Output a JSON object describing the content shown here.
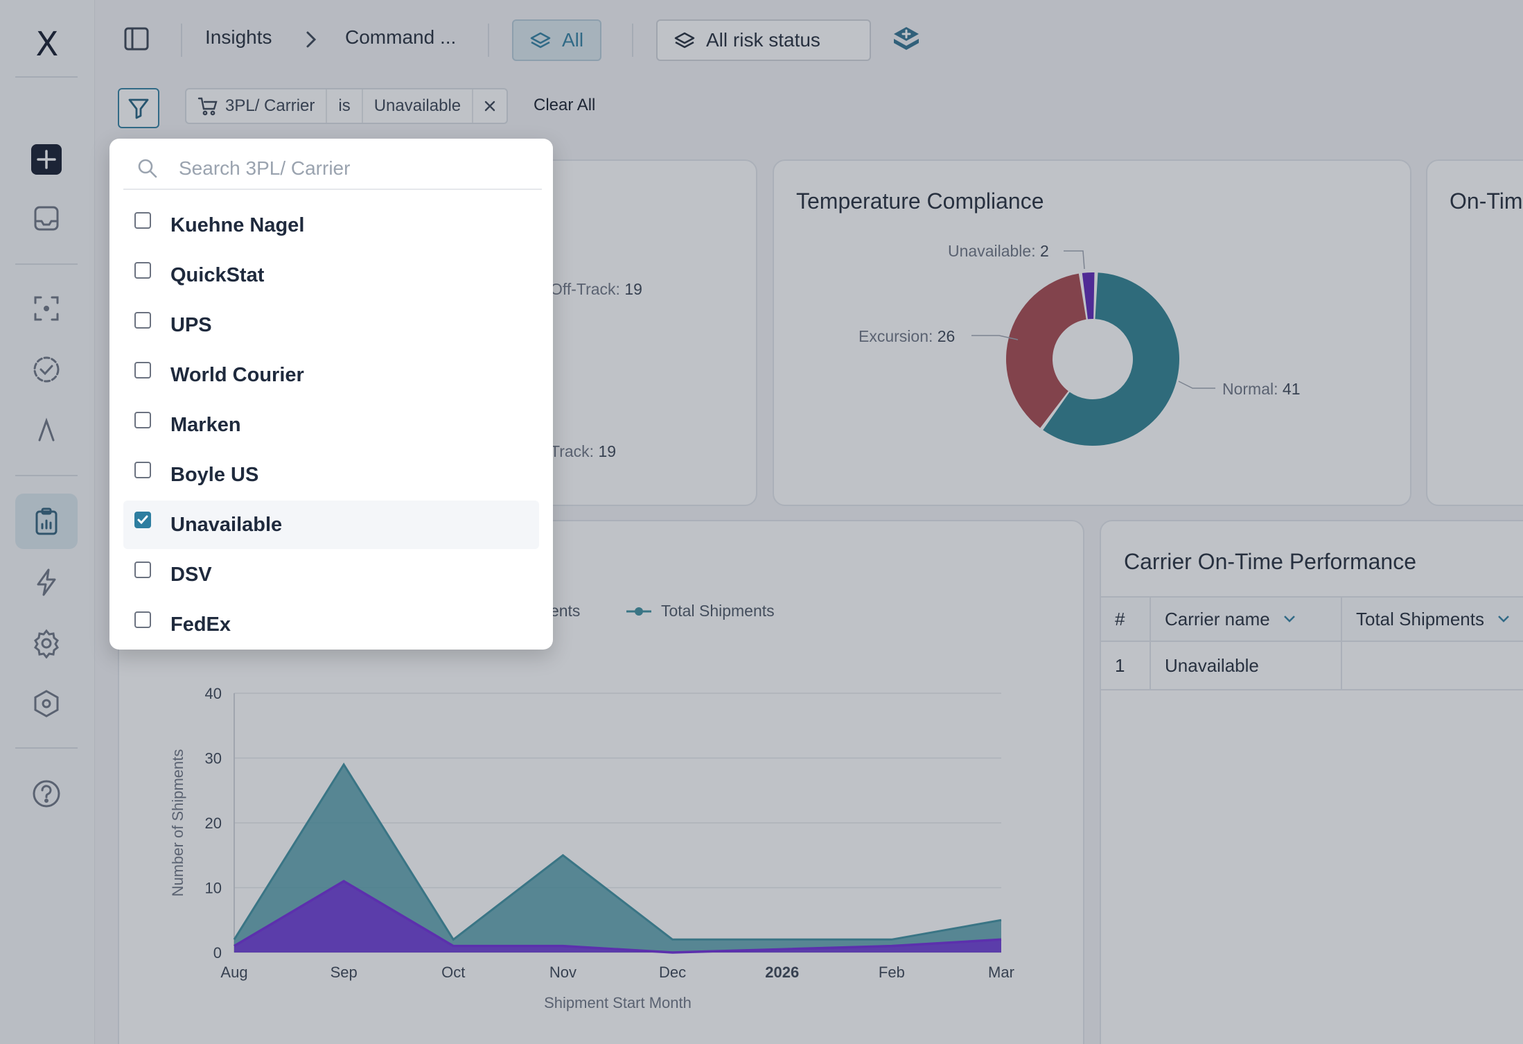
{
  "app": {
    "logo": "X"
  },
  "breadcrumb": {
    "root": "Insights",
    "current": "Command ...",
    "separator": "›"
  },
  "toolbar": {
    "all_label": "All",
    "risk_label": "All risk status"
  },
  "filter": {
    "field": "3PL/ Carrier",
    "operator": "is",
    "value": "Unavailable",
    "clear_all": "Clear All"
  },
  "cards": {
    "tracking": {
      "off_track_top_label": "Off-Track:",
      "off_track_top_value": "19",
      "on_track_label": "Track:",
      "on_track_value": "19"
    },
    "temperature": {
      "title": "Temperature Compliance",
      "labels": [
        {
          "name": "Unavailable:",
          "value": "2"
        },
        {
          "name": "Excursion:",
          "value": "26"
        },
        {
          "name": "Normal:",
          "value": "41"
        }
      ]
    },
    "ontime_partial_title": "On-Tim",
    "trend": {
      "legend_partial": "pments",
      "legend_total": "Total Shipments"
    },
    "carrier_table": {
      "title": "Carrier On-Time Performance",
      "columns": [
        "#",
        "Carrier name",
        "Total Shipments"
      ],
      "rows": [
        {
          "index": "1",
          "carrier": "Unavailable",
          "total": ""
        }
      ]
    }
  },
  "chart_data": [
    {
      "type": "pie",
      "title": "Temperature Compliance",
      "slices": [
        {
          "label": "Normal",
          "value": 41,
          "color": "#2b7f8f"
        },
        {
          "label": "Excursion",
          "value": 26,
          "color": "#a6454a"
        },
        {
          "label": "Unavailable",
          "value": 2,
          "color": "#5b21b6"
        }
      ]
    },
    {
      "type": "area",
      "xlabel": "Shipment Start Month",
      "ylabel": "Number of Shipments",
      "categories": [
        "Aug",
        "Sep",
        "Oct",
        "Nov",
        "Dec",
        "2026",
        "Feb",
        "Mar"
      ],
      "ylim": [
        0,
        40
      ],
      "yticks": [
        0,
        10,
        20,
        30,
        40
      ],
      "series": [
        {
          "name": "Total Shipments",
          "values": [
            2,
            29,
            2,
            15,
            2,
            2,
            2,
            5
          ],
          "color": "#3b8e9e"
        },
        {
          "values": [
            1,
            11,
            1,
            1,
            0,
            0.5,
            1,
            2
          ],
          "color": "#6d28d9"
        }
      ]
    }
  ],
  "dropdown": {
    "search_placeholder": "Search 3PL/ Carrier",
    "items": [
      {
        "label": "Kuehne Nagel",
        "checked": false
      },
      {
        "label": "QuickStat",
        "checked": false
      },
      {
        "label": "UPS",
        "checked": false
      },
      {
        "label": "World Courier",
        "checked": false
      },
      {
        "label": "Marken",
        "checked": false
      },
      {
        "label": "Boyle US",
        "checked": false
      },
      {
        "label": "Unavailable",
        "checked": true
      },
      {
        "label": "DSV",
        "checked": false
      },
      {
        "label": "FedEx",
        "checked": false
      }
    ]
  }
}
